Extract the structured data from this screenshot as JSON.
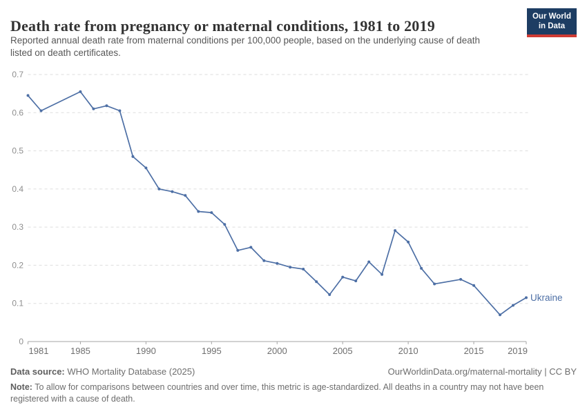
{
  "header": {
    "title": "Death rate from pregnancy or maternal conditions, 1981 to 2019",
    "subtitle": "Reported annual death rate from maternal conditions per 100,000 people, based on the underlying cause of death listed on death certificates.",
    "logo": {
      "line1": "Our World",
      "line2": "in Data"
    }
  },
  "colors": {
    "series_blue": "#4d6fa5",
    "grid": "#dddddd",
    "axis": "#a5a5a5",
    "y_tick_label": "#8e8e8e",
    "x_tick_label": "#6e6e6e",
    "logo_navy": "#1d3d63",
    "logo_red": "#cf3b33"
  },
  "chart_data": {
    "type": "line",
    "title": "Death rate from pregnancy or maternal conditions, 1981 to 2019",
    "xlabel": "",
    "ylabel": "",
    "xlim": [
      1981,
      2019
    ],
    "ylim": [
      0,
      0.7
    ],
    "x_ticks": [
      1981,
      1985,
      1990,
      1995,
      2000,
      2005,
      2010,
      2015,
      2019
    ],
    "y_ticks": [
      0,
      0.1,
      0.2,
      0.3,
      0.4,
      0.5,
      0.6,
      0.7
    ],
    "grid": "horizontal-dashed",
    "legend_position": "end-of-line-label",
    "missing_years": [
      1983,
      1984,
      2013,
      2016
    ],
    "series": [
      {
        "name": "Ukraine",
        "color": "#4d6fa5",
        "points": [
          [
            1981,
            0.645
          ],
          [
            1982,
            0.605
          ],
          [
            1985,
            0.655
          ],
          [
            1986,
            0.61
          ],
          [
            1987,
            0.618
          ],
          [
            1988,
            0.605
          ],
          [
            1989,
            0.485
          ],
          [
            1990,
            0.455
          ],
          [
            1991,
            0.4
          ],
          [
            1992,
            0.393
          ],
          [
            1993,
            0.383
          ],
          [
            1994,
            0.341
          ],
          [
            1995,
            0.338
          ],
          [
            1996,
            0.307
          ],
          [
            1997,
            0.239
          ],
          [
            1998,
            0.247
          ],
          [
            1999,
            0.212
          ],
          [
            2000,
            0.205
          ],
          [
            2001,
            0.195
          ],
          [
            2002,
            0.19
          ],
          [
            2003,
            0.157
          ],
          [
            2004,
            0.123
          ],
          [
            2005,
            0.169
          ],
          [
            2006,
            0.159
          ],
          [
            2007,
            0.209
          ],
          [
            2008,
            0.176
          ],
          [
            2009,
            0.291
          ],
          [
            2010,
            0.261
          ],
          [
            2011,
            0.192
          ],
          [
            2012,
            0.151
          ],
          [
            2014,
            0.163
          ],
          [
            2015,
            0.147
          ],
          [
            2017,
            0.07
          ],
          [
            2018,
            0.095
          ],
          [
            2019,
            0.115
          ]
        ]
      }
    ]
  },
  "footer": {
    "source_label": "Data source:",
    "source_text": " WHO Mortality Database (2025)",
    "link_text": "OurWorldinData.org/maternal-mortality | CC BY",
    "note_label": "Note:",
    "note_text": " To allow for comparisons between countries and over time, this metric is age-standardized. All deaths in a country may not have been registered with a cause of death."
  }
}
